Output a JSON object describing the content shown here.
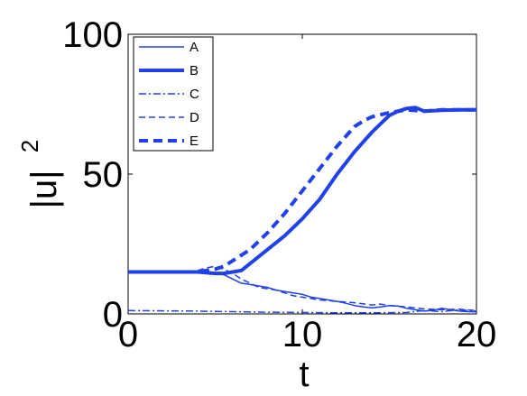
{
  "chart_data": {
    "type": "line",
    "xlabel": "t",
    "ylabel": "|u|",
    "ylabel_superscript": "2",
    "xlim": [
      0,
      20
    ],
    "ylim": [
      0,
      100
    ],
    "xticks": [
      0,
      10,
      20
    ],
    "yticks": [
      0,
      50,
      100
    ],
    "grid": false,
    "legend_position": "top-left",
    "line_color": "#2040e8",
    "series": [
      {
        "name": "A",
        "style": "solid",
        "weight": "thin",
        "x": [
          0,
          2,
          4,
          5,
          5.5,
          6,
          6.5,
          7,
          7.5,
          8,
          8.5,
          9,
          9.5,
          10,
          10.5,
          11,
          11.5,
          12,
          12.5,
          13,
          13.5,
          14,
          14.5,
          15,
          15.5,
          16,
          16.5,
          17,
          17.5,
          18,
          18.5,
          19,
          19.5,
          20
        ],
        "y": [
          15,
          15,
          14.9,
          14.5,
          14,
          12.5,
          11,
          10.5,
          10,
          9.5,
          8.5,
          8,
          7.5,
          7,
          6,
          5.5,
          5,
          4.5,
          3.8,
          3,
          2.5,
          2.2,
          2.5,
          3,
          2.8,
          2,
          1.5,
          1,
          1.3,
          2,
          1.5,
          1,
          0.8,
          0.7
        ]
      },
      {
        "name": "B",
        "style": "solid",
        "weight": "thick",
        "x": [
          0,
          2,
          4,
          5,
          5.5,
          6,
          6.5,
          7,
          8,
          9,
          10,
          11,
          12,
          13,
          14,
          14.5,
          15,
          15.5,
          16,
          16.5,
          17,
          18,
          19,
          20
        ],
        "y": [
          15,
          15,
          15,
          14.5,
          14.5,
          15,
          15.5,
          18,
          23,
          28,
          34,
          41,
          50,
          58,
          65,
          68,
          71,
          72.5,
          73.5,
          73.8,
          72.5,
          72.8,
          73,
          73
        ]
      },
      {
        "name": "C",
        "style": "dashdot",
        "weight": "thin",
        "x": [
          0,
          2,
          4,
          6,
          8,
          10,
          12,
          14,
          16,
          17,
          18,
          19,
          20
        ],
        "y": [
          1.2,
          1.1,
          1,
          0.8,
          0.6,
          0.5,
          0.4,
          0.4,
          0.5,
          1.2,
          0.8,
          1.5,
          1
        ]
      },
      {
        "name": "D",
        "style": "dashed",
        "weight": "thin",
        "x": [
          0,
          2,
          4,
          4.5,
          5,
          5.5,
          6,
          6.5,
          7,
          7.5,
          8,
          8.5,
          9,
          9.5,
          10,
          11,
          12,
          13,
          14,
          14.5,
          15,
          16,
          17,
          18,
          19,
          20
        ],
        "y": [
          15,
          15,
          15.5,
          16.5,
          17,
          16,
          14.5,
          12.5,
          11,
          9.5,
          9,
          8.5,
          7.5,
          6.5,
          6,
          5,
          4.5,
          4,
          3.2,
          3.5,
          3,
          2.5,
          1.8,
          1.5,
          1.7,
          1.2
        ]
      },
      {
        "name": "E",
        "style": "dashed",
        "weight": "thick",
        "x": [
          0,
          2,
          4,
          4.5,
          5,
          5.5,
          6,
          7,
          8,
          9,
          10,
          11,
          12,
          13,
          13.5,
          14,
          15,
          15.5,
          16,
          17,
          18,
          19,
          20
        ],
        "y": [
          15,
          15,
          15,
          15.5,
          16,
          17,
          19,
          23,
          29,
          36,
          44,
          52,
          60,
          67,
          69,
          70.5,
          72,
          72.5,
          73,
          72.5,
          73,
          73,
          73
        ]
      }
    ]
  }
}
